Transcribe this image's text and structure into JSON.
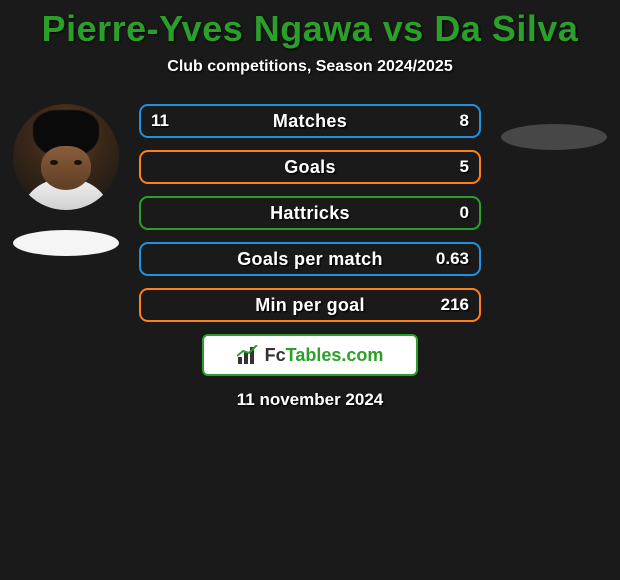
{
  "title_color": "#2aa02a",
  "title": "Pierre-Yves Ngawa vs Da Silva",
  "subtitle": "Club competitions, Season 2024/2025",
  "shadow_color_left": "#f5f5f5",
  "shadow_color_right": "#474747",
  "bars": [
    {
      "label": "Matches",
      "left": "11",
      "right": "8",
      "border": "#2090e0"
    },
    {
      "label": "Goals",
      "left": "",
      "right": "5",
      "border": "#ff8018"
    },
    {
      "label": "Hattricks",
      "left": "",
      "right": "0",
      "border": "#2aa02a"
    },
    {
      "label": "Goals per match",
      "left": "",
      "right": "0.63",
      "border": "#2090e0"
    },
    {
      "label": "Min per goal",
      "left": "",
      "right": "216",
      "border": "#ff8018"
    }
  ],
  "brand": {
    "pre": "Fc",
    "post": "Tables.com"
  },
  "date": "11 november 2024"
}
